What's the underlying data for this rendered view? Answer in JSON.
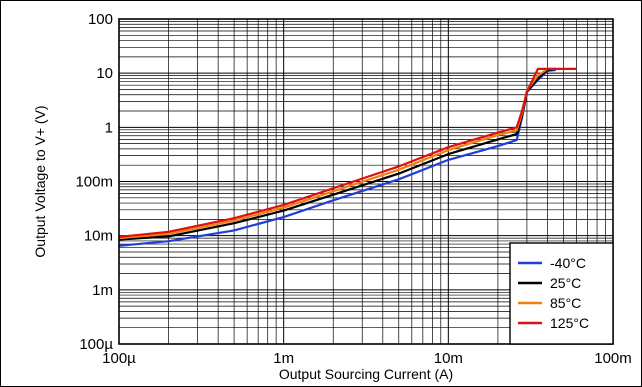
{
  "chart_data": {
    "type": "line",
    "title": "",
    "xlabel": "Output Sourcing Current (A)",
    "ylabel": "Output Voltage to V+ (V)",
    "x_scale": "log",
    "y_scale": "log",
    "xlim": [
      0.0001,
      0.1
    ],
    "ylim": [
      0.0001,
      100
    ],
    "grid": true,
    "legend_position": "bottom-right",
    "x_ticks": [
      {
        "value": 0.0001,
        "label": "100µ"
      },
      {
        "value": 0.001,
        "label": "1m"
      },
      {
        "value": 0.01,
        "label": "10m"
      },
      {
        "value": 0.1,
        "label": "100m"
      }
    ],
    "y_ticks": [
      {
        "value": 0.0001,
        "label": "100µ"
      },
      {
        "value": 0.001,
        "label": "1m"
      },
      {
        "value": 0.01,
        "label": "10m"
      },
      {
        "value": 0.1,
        "label": "100m"
      },
      {
        "value": 1,
        "label": "1"
      },
      {
        "value": 10,
        "label": "10"
      },
      {
        "value": 100,
        "label": "100"
      }
    ],
    "series": [
      {
        "name": "-40°C",
        "color": "#1f3fd6",
        "x": [
          0.0001,
          0.0002,
          0.0005,
          0.001,
          0.002,
          0.005,
          0.01,
          0.02,
          0.026,
          0.028,
          0.03,
          0.035,
          0.04,
          0.045
        ],
        "y": [
          0.0065,
          0.0079,
          0.0125,
          0.022,
          0.045,
          0.11,
          0.25,
          0.45,
          0.58,
          1.5,
          4.5,
          7.5,
          11,
          11.5
        ]
      },
      {
        "name": "25°C",
        "color": "#000000",
        "x": [
          0.0001,
          0.0002,
          0.0005,
          0.001,
          0.002,
          0.005,
          0.01,
          0.02,
          0.026,
          0.028,
          0.03,
          0.035,
          0.04,
          0.045
        ],
        "y": [
          0.0085,
          0.0097,
          0.017,
          0.029,
          0.057,
          0.14,
          0.32,
          0.6,
          0.75,
          1.6,
          4.5,
          8.0,
          11.5,
          12
        ]
      },
      {
        "name": "85°C",
        "color": "#f07f10",
        "x": [
          0.0001,
          0.0002,
          0.0005,
          0.001,
          0.002,
          0.005,
          0.01,
          0.02,
          0.026,
          0.028,
          0.03,
          0.035,
          0.04,
          0.045
        ],
        "y": [
          0.009,
          0.0108,
          0.019,
          0.033,
          0.066,
          0.165,
          0.38,
          0.72,
          0.88,
          1.8,
          4.8,
          9.0,
          12,
          12
        ]
      },
      {
        "name": "125°C",
        "color": "#e01010",
        "x": [
          0.0001,
          0.0002,
          0.0005,
          0.001,
          0.002,
          0.005,
          0.01,
          0.02,
          0.026,
          0.028,
          0.03,
          0.035,
          0.04,
          0.05,
          0.06
        ],
        "y": [
          0.0095,
          0.0118,
          0.021,
          0.037,
          0.075,
          0.19,
          0.43,
          0.8,
          1.0,
          2.0,
          4.5,
          12,
          12,
          12,
          12
        ]
      }
    ]
  }
}
